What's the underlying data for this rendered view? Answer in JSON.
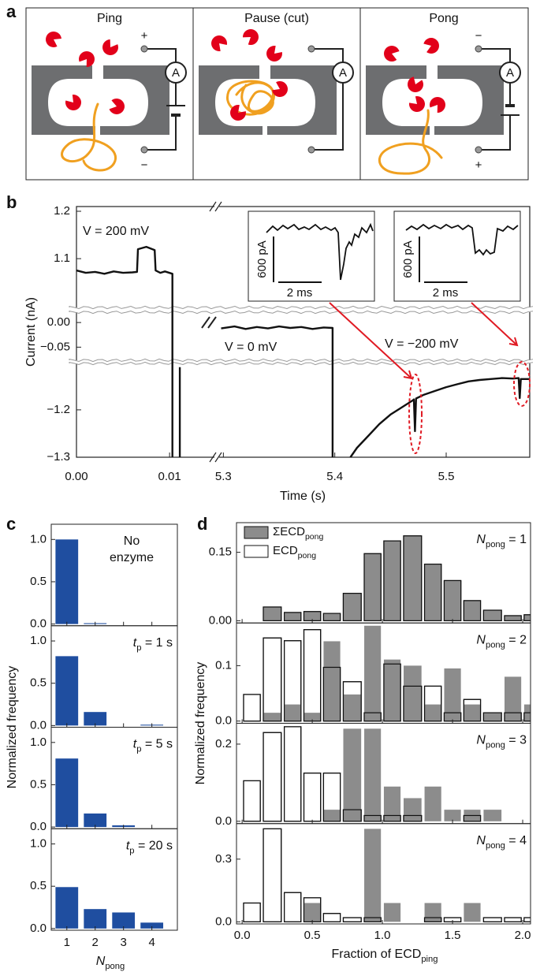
{
  "diagram": {
    "label": "a",
    "panels": [
      {
        "title": "Ping",
        "top_sign": "+",
        "bottom_sign": "−",
        "meter": "A"
      },
      {
        "title": "Pause (cut)",
        "meter": "A"
      },
      {
        "title": "Pong",
        "top_sign": "−",
        "bottom_sign": "+",
        "meter": "A"
      }
    ]
  },
  "chart_data": [
    {
      "type": "trace",
      "panel_label": "b",
      "xlabel": "Time (s)",
      "ylabel": "Current (nA)",
      "x_segments": [
        {
          "xlim": [
            0,
            0.0149
          ],
          "xticks": [
            {
              "value": 0,
              "label": "0.00"
            },
            {
              "value": 0.01,
              "label": "0.01"
            }
          ]
        },
        {
          "xlim": [
            5.2955,
            5.575
          ],
          "xticks": [
            5.3,
            5.4,
            5.5
          ]
        }
      ],
      "y_segments": [
        {
          "ylim": [
            0.997,
            1.21
          ],
          "yticks": [
            1.2,
            1.1
          ]
        },
        {
          "ylim": [
            -0.0766,
            0.021
          ],
          "yticks": [
            {
              "value": 0,
              "label": "0.00"
            },
            {
              "value": -0.05,
              "label": "−0.05"
            }
          ]
        },
        {
          "ylim": [
            -1.3,
            -1.102
          ],
          "yticks": [
            {
              "value": -1.2,
              "label": "−1.2"
            },
            {
              "value": -1.3,
              "label": "−1.3"
            }
          ]
        }
      ],
      "traces": [
        {
          "x": [
            0,
            0.001,
            0.002,
            0.003,
            0.004,
            0.005,
            0.006,
            0.0065,
            0.0066,
            0.0075,
            0.0084,
            0.0085,
            0.009,
            0.0095,
            0.0103,
            0.0103
          ],
          "y": [
            1.075,
            1.07,
            1.072,
            1.068,
            1.073,
            1.07,
            1.071,
            1.072,
            1.12,
            1.125,
            1.118,
            1.075,
            1.07,
            1.073,
            1.068,
            -1.3
          ]
        },
        {
          "x": [
            0.0111,
            0.0111
          ],
          "y": [
            -1.11,
            -1.3
          ]
        },
        {
          "x": [
            5.298,
            5.31,
            5.32,
            5.33,
            5.34,
            5.35,
            5.36,
            5.37,
            5.38,
            5.39,
            5.398,
            5.398
          ],
          "y": [
            -0.012,
            -0.008,
            -0.013,
            -0.009,
            -0.012,
            -0.008,
            -0.011,
            -0.009,
            -0.013,
            -0.01,
            -0.011,
            -1.3
          ]
        },
        {
          "x": [
            5.414,
            5.42,
            5.43,
            5.44,
            5.45,
            5.46,
            5.47,
            5.471,
            5.472,
            5.473,
            5.48,
            5.49,
            5.5,
            5.51,
            5.52,
            5.53,
            5.54,
            5.55,
            5.56,
            5.565,
            5.566,
            5.567,
            5.575
          ],
          "y": [
            -1.3,
            -1.28,
            -1.255,
            -1.23,
            -1.21,
            -1.195,
            -1.18,
            -1.178,
            -1.245,
            -1.176,
            -1.168,
            -1.16,
            -1.152,
            -1.146,
            -1.14,
            -1.137,
            -1.135,
            -1.133,
            -1.134,
            -1.133,
            -1.175,
            -1.135,
            -1.135
          ]
        }
      ],
      "annotations": [
        "V = 200 mV",
        "V = 0 mV",
        "V = −200 mV"
      ],
      "insets": [
        {
          "ylabel": "600 pA",
          "xlabel": "2 ms"
        },
        {
          "ylabel": "600 pA",
          "xlabel": "2 ms"
        }
      ]
    },
    {
      "type": "bar",
      "panel_label": "c",
      "ylabel": "Normalized frequency",
      "xlabel": {
        "main": "N",
        "sub": "pong"
      },
      "x": [
        1,
        2,
        3,
        4
      ],
      "xlim": [
        0.45,
        4.9
      ],
      "xticks": [
        1,
        2,
        3,
        4
      ],
      "color": "#1f4ea0",
      "ylim": [
        -0.02,
        1.18
      ],
      "yticks": [
        {
          "value": 0,
          "label": "0.0"
        },
        0.5,
        {
          "value": 1,
          "label": "1.0"
        }
      ],
      "subplots": [
        {
          "annotation": [
            "No",
            "enzyme"
          ],
          "values": [
            1.0,
            0.01,
            0,
            0
          ]
        },
        {
          "annotation": {
            "main": "t",
            "sub": "p",
            "rest": " = 1 s"
          },
          "values": [
            0.82,
            0.16,
            0,
            0.01
          ]
        },
        {
          "annotation": {
            "main": "t",
            "sub": "p",
            "rest": " = 5 s"
          },
          "values": [
            0.81,
            0.16,
            0.02,
            0
          ]
        },
        {
          "annotation": {
            "main": "t",
            "sub": "p",
            "rest": " = 20 s"
          },
          "values": [
            0.49,
            0.23,
            0.19,
            0.07
          ]
        }
      ]
    },
    {
      "type": "histogram",
      "panel_label": "d",
      "ylabel": "Normalized frequency",
      "xlabel": {
        "main": "Fraction of ECD",
        "sub": "ping"
      },
      "xlim": [
        -0.04,
        2.056
      ],
      "xticks": [
        {
          "value": 0,
          "label": "0.0"
        },
        0.5,
        {
          "value": 1,
          "label": "1.0"
        },
        1.5,
        {
          "value": 2,
          "label": "2.0"
        }
      ],
      "bins": [
        0,
        0.14,
        0.29,
        0.43,
        0.57,
        0.71,
        0.86,
        1.0,
        1.14,
        1.29,
        1.43,
        1.57,
        1.71,
        1.86,
        2.0,
        2.14
      ],
      "legend": "upper left",
      "series": [
        {
          "name": {
            "main": "ΣECD",
            "sub": "pong"
          },
          "color": "#8c8c8c"
        },
        {
          "name": {
            "main": "ECD",
            "sub": "pong"
          },
          "color": "#ffffff"
        }
      ],
      "subplots": [
        {
          "annotation": {
            "main": "N",
            "sub": "pong",
            "rest": " = 1"
          },
          "ylim": [
            -0.005,
            0.215
          ],
          "yticks": [
            {
              "value": 0,
              "label": "0.00"
            },
            0.15
          ],
          "values": [
            [
              0,
              0.03,
              0.018,
              0.02,
              0.016,
              0.06,
              0.147,
              0.175,
              0.186,
              0.124,
              0.088,
              0.044,
              0.023,
              0.011,
              0.013
            ],
            [
              0,
              0.03,
              0.018,
              0.02,
              0.016,
              0.06,
              0.147,
              0.175,
              0.186,
              0.124,
              0.088,
              0.044,
              0.023,
              0.011,
              0.013
            ]
          ]
        },
        {
          "annotation": {
            "main": "N",
            "sub": "pong",
            "rest": " = 2"
          },
          "ylim": [
            -0.004,
            0.177
          ],
          "yticks": [
            {
              "value": 0,
              "label": "0.0"
            },
            0.1
          ],
          "values": [
            [
              0,
              0.015,
              0.03,
              0.015,
              0.144,
              0.048,
              0.172,
              0.111,
              0.1,
              0.03,
              0.095,
              0.03,
              0.015,
              0.08,
              0.03
            ],
            [
              0.048,
              0.15,
              0.145,
              0.165,
              0.097,
              0.071,
              0.015,
              0.103,
              0.063,
              0.063,
              0.015,
              0.039,
              0.015,
              0.015,
              0.015
            ]
          ]
        },
        {
          "annotation": {
            "main": "N",
            "sub": "pong",
            "rest": " = 3"
          },
          "ylim": [
            -0.006,
            0.254
          ],
          "yticks": [
            {
              "value": 0,
              "label": "0.0"
            },
            0.2
          ],
          "values": [
            [
              0,
              0,
              0,
              0,
              0.03,
              0.24,
              0.24,
              0.09,
              0.06,
              0.09,
              0.03,
              0.03,
              0.03,
              0,
              0
            ],
            [
              0.105,
              0.23,
              0.245,
              0.125,
              0.125,
              0.03,
              0.015,
              0.015,
              0.015,
              0,
              0,
              0.015,
              0,
              0,
              0
            ]
          ]
        },
        {
          "annotation": {
            "main": "N",
            "sub": "pong",
            "rest": " = 4"
          },
          "ylim": [
            -0.01,
            0.47
          ],
          "yticks": [
            {
              "value": 0,
              "label": "0.0"
            },
            0.3
          ],
          "values": [
            [
              0,
              0,
              0,
              0.09,
              0,
              0,
              0.445,
              0.09,
              0,
              0.09,
              0,
              0.09,
              0,
              0,
              0
            ],
            [
              0.09,
              0.445,
              0.14,
              0.115,
              0.04,
              0.02,
              0.02,
              0,
              0,
              0.02,
              0.02,
              0,
              0.02,
              0.02,
              0.02
            ]
          ]
        }
      ]
    }
  ]
}
